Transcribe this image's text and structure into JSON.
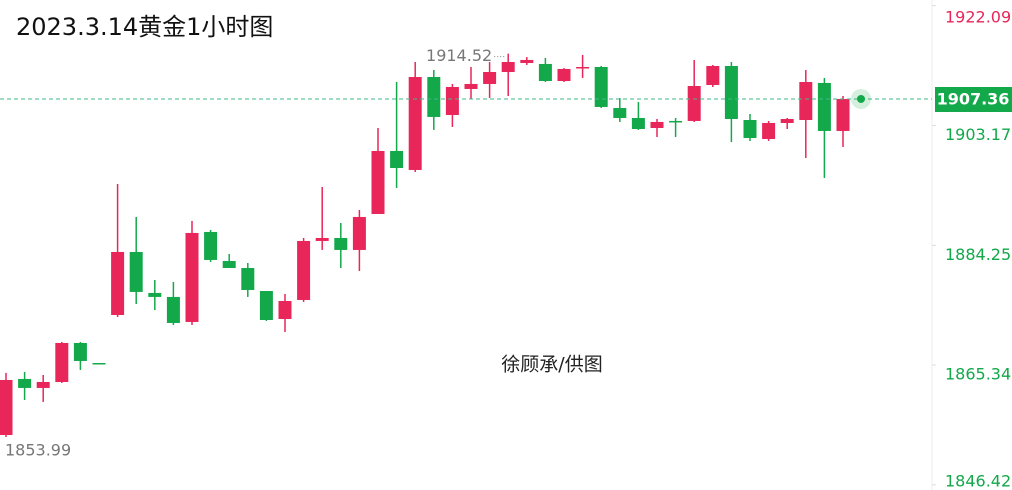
{
  "chart_data": {
    "type": "candlestick",
    "title": "2023.3.14黄金1小时图",
    "watermark": "徐顾承/供图",
    "up_color": "#e8265a",
    "down_color": "#13a84a",
    "ylim": [
      1846.42,
      1922.09
    ],
    "yticks": [
      1922.09,
      1903.17,
      1884.25,
      1865.34,
      1846.42
    ],
    "ohlc": [
      [
        1854.3,
        1864.1,
        1853.99,
        1862.99
      ],
      [
        1863.15,
        1864.25,
        1859.83,
        1861.73
      ],
      [
        1861.73,
        1863.78,
        1859.52,
        1862.67
      ],
      [
        1862.67,
        1868.99,
        1862.52,
        1868.83
      ],
      [
        1868.83,
        1868.99,
        1864.57,
        1865.99
      ],
      [
        1865.67,
        1865.67,
        1865.52,
        1865.52
      ],
      [
        1873.25,
        1893.94,
        1872.94,
        1883.2
      ],
      [
        1883.2,
        1888.73,
        1874.99,
        1876.89
      ],
      [
        1876.73,
        1878.78,
        1874.04,
        1876.1
      ],
      [
        1876.1,
        1878.46,
        1871.67,
        1871.99
      ],
      [
        1872.15,
        1888.1,
        1871.67,
        1886.2
      ],
      [
        1886.36,
        1886.68,
        1881.62,
        1881.94
      ],
      [
        1881.78,
        1882.89,
        1880.67,
        1880.67
      ],
      [
        1880.67,
        1881.46,
        1876.1,
        1877.2
      ],
      [
        1877.04,
        1877.04,
        1872.31,
        1872.46
      ],
      [
        1872.62,
        1876.57,
        1870.57,
        1875.46
      ],
      [
        1875.62,
        1885.41,
        1875.31,
        1884.94
      ],
      [
        1884.94,
        1893.46,
        1883.52,
        1885.41
      ],
      [
        1885.41,
        1887.78,
        1880.67,
        1883.52
      ],
      [
        1883.52,
        1889.83,
        1880.2,
        1888.73
      ],
      [
        1889.2,
        1902.78,
        1889.2,
        1899.15
      ],
      [
        1899.15,
        1910.04,
        1893.31,
        1896.46
      ],
      [
        1896.15,
        1913.2,
        1895.83,
        1910.83
      ],
      [
        1910.83,
        1911.94,
        1902.47,
        1904.52
      ],
      [
        1904.83,
        1909.73,
        1902.94,
        1909.25
      ],
      [
        1908.94,
        1912.41,
        1907.36,
        1909.73
      ],
      [
        1909.73,
        1913.2,
        1907.52,
        1911.62
      ],
      [
        1911.62,
        1914.52,
        1907.83,
        1913.2
      ],
      [
        1913.04,
        1913.99,
        1912.73,
        1913.52
      ],
      [
        1912.89,
        1913.83,
        1910.04,
        1910.2
      ],
      [
        1910.2,
        1912.25,
        1910.04,
        1912.1
      ],
      [
        1912.25,
        1914.31,
        1910.68,
        1912.41
      ],
      [
        1912.41,
        1912.57,
        1905.94,
        1906.1
      ],
      [
        1905.94,
        1907.52,
        1903.73,
        1904.36
      ],
      [
        1904.36,
        1906.89,
        1902.47,
        1902.62
      ],
      [
        1902.78,
        1904.2,
        1901.36,
        1903.73
      ],
      [
        1903.89,
        1904.36,
        1901.36,
        1903.73
      ],
      [
        1903.89,
        1913.52,
        1903.73,
        1909.41
      ],
      [
        1909.57,
        1912.73,
        1909.25,
        1912.57
      ],
      [
        1912.57,
        1913.2,
        1900.57,
        1904.2
      ],
      [
        1904.04,
        1904.99,
        1900.73,
        1901.2
      ],
      [
        1901.04,
        1903.89,
        1900.73,
        1903.57
      ],
      [
        1903.57,
        1904.36,
        1902.62,
        1904.2
      ],
      [
        1904.04,
        1911.94,
        1898.04,
        1910.04
      ],
      [
        1909.89,
        1910.68,
        1894.89,
        1902.31
      ],
      [
        1902.31,
        1907.83,
        1899.78,
        1907.36
      ]
    ]
  }
}
